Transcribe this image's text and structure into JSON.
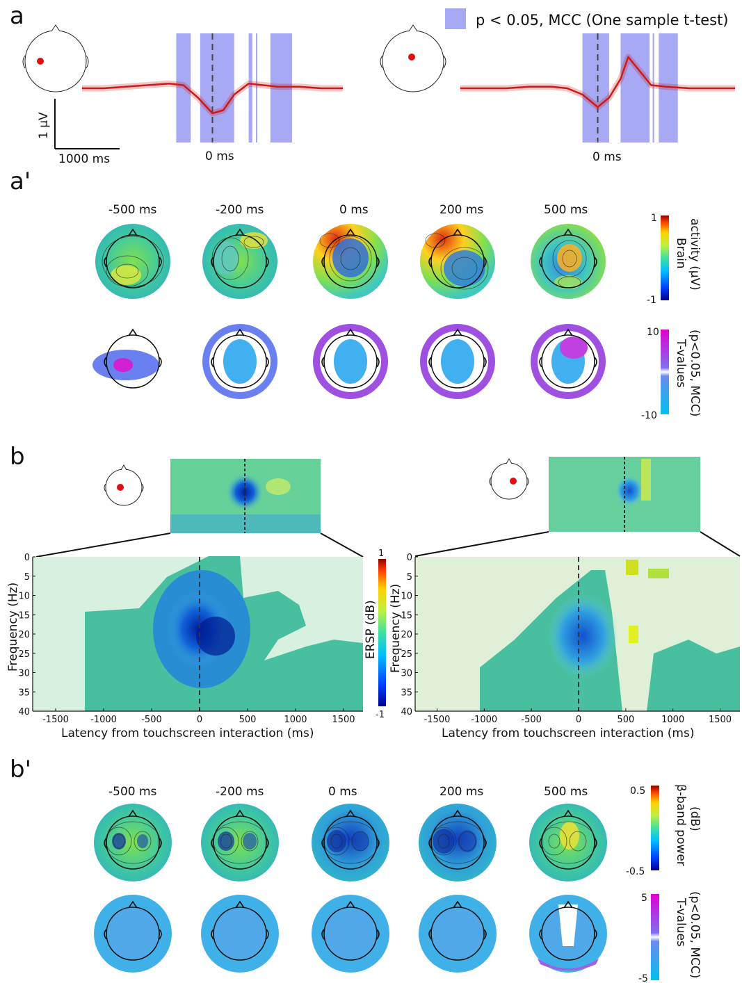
{
  "panels": {
    "a": "a",
    "a_prime": "a'",
    "b": "b",
    "b_prime": "b'"
  },
  "legend": {
    "text": "p < 0.05, MCC (One sample t-test)",
    "color": "#a7a9f4"
  },
  "scale_bar": {
    "y": "1 µV",
    "x": "1000  ms"
  },
  "zero_label": "0 ms",
  "erp_color": "#cc1a1a",
  "timepoints": [
    "-500 ms",
    "-200 ms",
    "0 ms",
    "200 ms",
    "500 ms"
  ],
  "colorbars": {
    "brain": {
      "label_line1": "Brain",
      "label_line2": "activity (µV)",
      "max": "1",
      "min": "-1"
    },
    "tvals_a": {
      "label_line1": "T-values",
      "label_line2": "(p<0.05, MCC)",
      "max": "10",
      "min": "-10"
    },
    "ersp": {
      "label": "ERSP (dB)",
      "max": "1",
      "min": "-1"
    },
    "beta": {
      "label_line1": "β-band  power",
      "label_line2": "(dB)",
      "max": "0.5",
      "min": "-0.5"
    },
    "tvals_b": {
      "label_line1": "T-values",
      "label_line2": "(p<0.05, MCC)",
      "max": "5",
      "min": "-5"
    }
  },
  "ersp_axes": {
    "xlabel": "Latency from touchscreen interaction (ms)",
    "ylabel": "Frequency (Hz)",
    "xticks": [
      "-1500",
      "-1000",
      "-500",
      "0",
      "500",
      "1000",
      "1500"
    ],
    "yticks": [
      "0",
      "5",
      "10",
      "15",
      "20",
      "25",
      "30",
      "35",
      "40"
    ]
  },
  "chart_data": [
    {
      "type": "line",
      "x": [
        -1800,
        -1500,
        -1200,
        -900,
        -600,
        -400,
        -200,
        0,
        150,
        300,
        500,
        700,
        900,
        1200,
        1500,
        1800
      ],
      "y": [
        0,
        0,
        0.05,
        0.1,
        0.15,
        0.1,
        -0.3,
        -0.8,
        -0.7,
        -0.2,
        0.15,
        0.1,
        0.05,
        0.05,
        0,
        0
      ],
      "significance_windows_ms": [
        [
          -500,
          -300
        ],
        [
          -170,
          300
        ],
        [
          500,
          550
        ],
        [
          600,
          620
        ],
        [
          800,
          1100
        ]
      ]
    },
    {
      "type": "line",
      "x": [
        -1800,
        -1500,
        -1200,
        -900,
        -600,
        -400,
        -200,
        0,
        150,
        300,
        400,
        500,
        700,
        900,
        1200,
        1500,
        1800
      ],
      "y": [
        0,
        0,
        0,
        0.05,
        0.05,
        0,
        -0.2,
        -0.6,
        -0.3,
        0.3,
        1.0,
        0.7,
        0.1,
        0.05,
        0,
        0,
        0
      ],
      "significance_windows_ms": [
        [
          -200,
          150
        ],
        [
          300,
          680
        ],
        [
          720,
          740
        ],
        [
          800,
          1050
        ]
      ]
    }
  ]
}
